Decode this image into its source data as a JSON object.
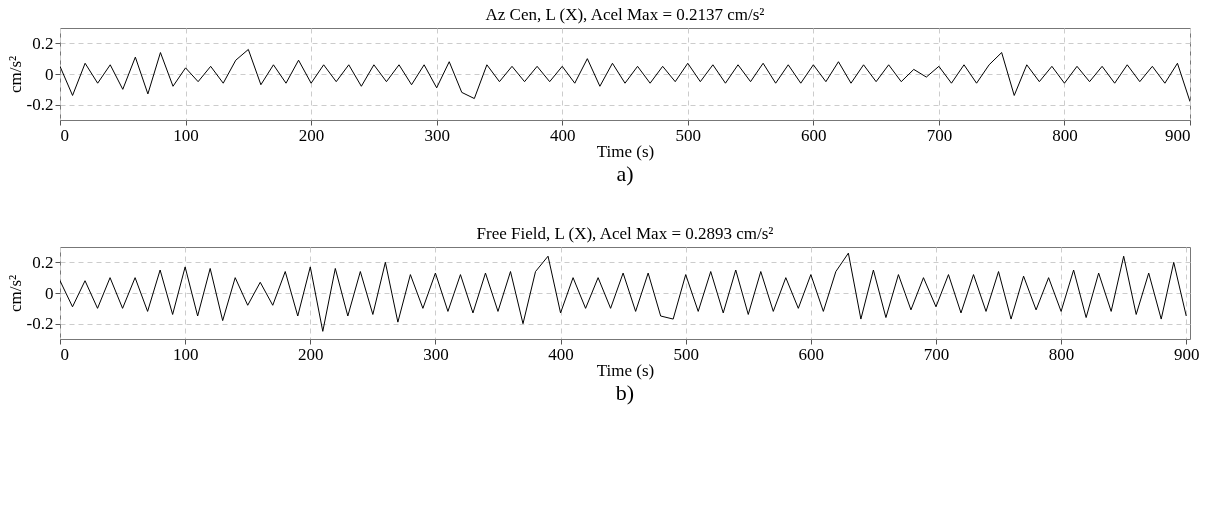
{
  "chart_data": [
    {
      "type": "line",
      "title": "Az Cen, L (X), Acel Max = 0.2137 cm/s²",
      "xlabel": "Time (s)",
      "ylabel": "cm/s²",
      "annotations": [
        "a)"
      ],
      "grid": true,
      "xlim": [
        0,
        900
      ],
      "xticks": [
        0,
        100,
        200,
        300,
        400,
        500,
        600,
        700,
        800,
        900
      ],
      "ylim": [
        -0.3,
        0.3
      ],
      "yticks": [
        -0.2,
        0,
        0.2
      ],
      "x": [
        0,
        10,
        20,
        30,
        40,
        50,
        60,
        70,
        80,
        90,
        100,
        110,
        120,
        130,
        140,
        150,
        160,
        170,
        180,
        190,
        200,
        210,
        220,
        230,
        240,
        250,
        260,
        270,
        280,
        290,
        300,
        310,
        320,
        330,
        340,
        350,
        360,
        370,
        380,
        390,
        400,
        410,
        420,
        430,
        440,
        450,
        460,
        470,
        480,
        490,
        500,
        510,
        520,
        530,
        540,
        550,
        560,
        570,
        580,
        590,
        600,
        610,
        620,
        630,
        640,
        650,
        660,
        670,
        680,
        690,
        700,
        710,
        720,
        730,
        740,
        750,
        760,
        770,
        780,
        790,
        800,
        810,
        820,
        830,
        840,
        850,
        860,
        870,
        880,
        890,
        900
      ],
      "series": [
        {
          "color": "#000000",
          "values": [
            0.05,
            -0.14,
            0.07,
            -0.06,
            0.06,
            -0.1,
            0.11,
            -0.13,
            0.14,
            -0.08,
            0.04,
            -0.05,
            0.05,
            -0.06,
            0.09,
            0.16,
            -0.07,
            0.06,
            -0.06,
            0.09,
            -0.06,
            0.06,
            -0.05,
            0.06,
            -0.08,
            0.06,
            -0.05,
            0.06,
            -0.07,
            0.06,
            -0.09,
            0.08,
            -0.12,
            -0.16,
            0.06,
            -0.05,
            0.05,
            -0.05,
            0.05,
            -0.05,
            0.05,
            -0.06,
            0.1,
            -0.08,
            0.07,
            -0.06,
            0.05,
            -0.06,
            0.05,
            -0.05,
            0.07,
            -0.05,
            0.06,
            -0.06,
            0.06,
            -0.05,
            0.07,
            -0.06,
            0.06,
            -0.06,
            0.06,
            -0.05,
            0.08,
            -0.06,
            0.06,
            -0.05,
            0.06,
            -0.05,
            0.03,
            -0.02,
            0.05,
            -0.06,
            0.06,
            -0.06,
            0.06,
            0.14,
            -0.14,
            0.06,
            -0.05,
            0.05,
            -0.06,
            0.05,
            -0.05,
            0.05,
            -0.06,
            0.06,
            -0.05,
            0.05,
            -0.06,
            0.07,
            -0.18
          ]
        }
      ]
    },
    {
      "type": "line",
      "title": "Free Field, L (X), Acel Max = 0.2893 cm/s²",
      "xlabel": "Time (s)",
      "ylabel": "cm/s²",
      "annotations": [
        "b)"
      ],
      "grid": true,
      "xlim": [
        0,
        903
      ],
      "xticks": [
        0,
        100,
        200,
        300,
        400,
        500,
        600,
        700,
        800,
        900
      ],
      "ylim": [
        -0.3,
        0.3
      ],
      "yticks": [
        -0.2,
        0,
        0.2
      ],
      "x": [
        0,
        10,
        20,
        30,
        40,
        50,
        60,
        70,
        80,
        90,
        100,
        110,
        120,
        130,
        140,
        150,
        160,
        170,
        180,
        190,
        200,
        210,
        220,
        230,
        240,
        250,
        260,
        270,
        280,
        290,
        300,
        310,
        320,
        330,
        340,
        350,
        360,
        370,
        380,
        390,
        400,
        410,
        420,
        430,
        440,
        450,
        460,
        470,
        480,
        490,
        500,
        510,
        520,
        530,
        540,
        550,
        560,
        570,
        580,
        590,
        600,
        610,
        620,
        630,
        640,
        650,
        660,
        670,
        680,
        690,
        700,
        710,
        720,
        730,
        740,
        750,
        760,
        770,
        780,
        790,
        800,
        810,
        820,
        830,
        840,
        850,
        860,
        870,
        880,
        890,
        900
      ],
      "series": [
        {
          "color": "#000000",
          "values": [
            0.08,
            -0.09,
            0.08,
            -0.1,
            0.1,
            -0.1,
            0.1,
            -0.12,
            0.15,
            -0.14,
            0.17,
            -0.15,
            0.16,
            -0.18,
            0.1,
            -0.08,
            0.07,
            -0.08,
            0.14,
            -0.15,
            0.17,
            -0.25,
            0.16,
            -0.15,
            0.14,
            -0.14,
            0.2,
            -0.19,
            0.12,
            -0.1,
            0.13,
            -0.12,
            0.12,
            -0.13,
            0.13,
            -0.12,
            0.14,
            -0.2,
            0.14,
            0.24,
            -0.13,
            0.1,
            -0.1,
            0.1,
            -0.1,
            0.13,
            -0.12,
            0.13,
            -0.15,
            -0.17,
            0.12,
            -0.12,
            0.14,
            -0.13,
            0.15,
            -0.14,
            0.14,
            -0.12,
            0.1,
            -0.1,
            0.12,
            -0.12,
            0.14,
            0.26,
            -0.17,
            0.15,
            -0.16,
            0.12,
            -0.11,
            0.1,
            -0.09,
            0.12,
            -0.13,
            0.12,
            -0.12,
            0.14,
            -0.17,
            0.11,
            -0.11,
            0.1,
            -0.12,
            0.15,
            -0.16,
            0.13,
            -0.12,
            0.24,
            -0.14,
            0.13,
            -0.17,
            0.2,
            -0.15
          ]
        }
      ]
    }
  ]
}
